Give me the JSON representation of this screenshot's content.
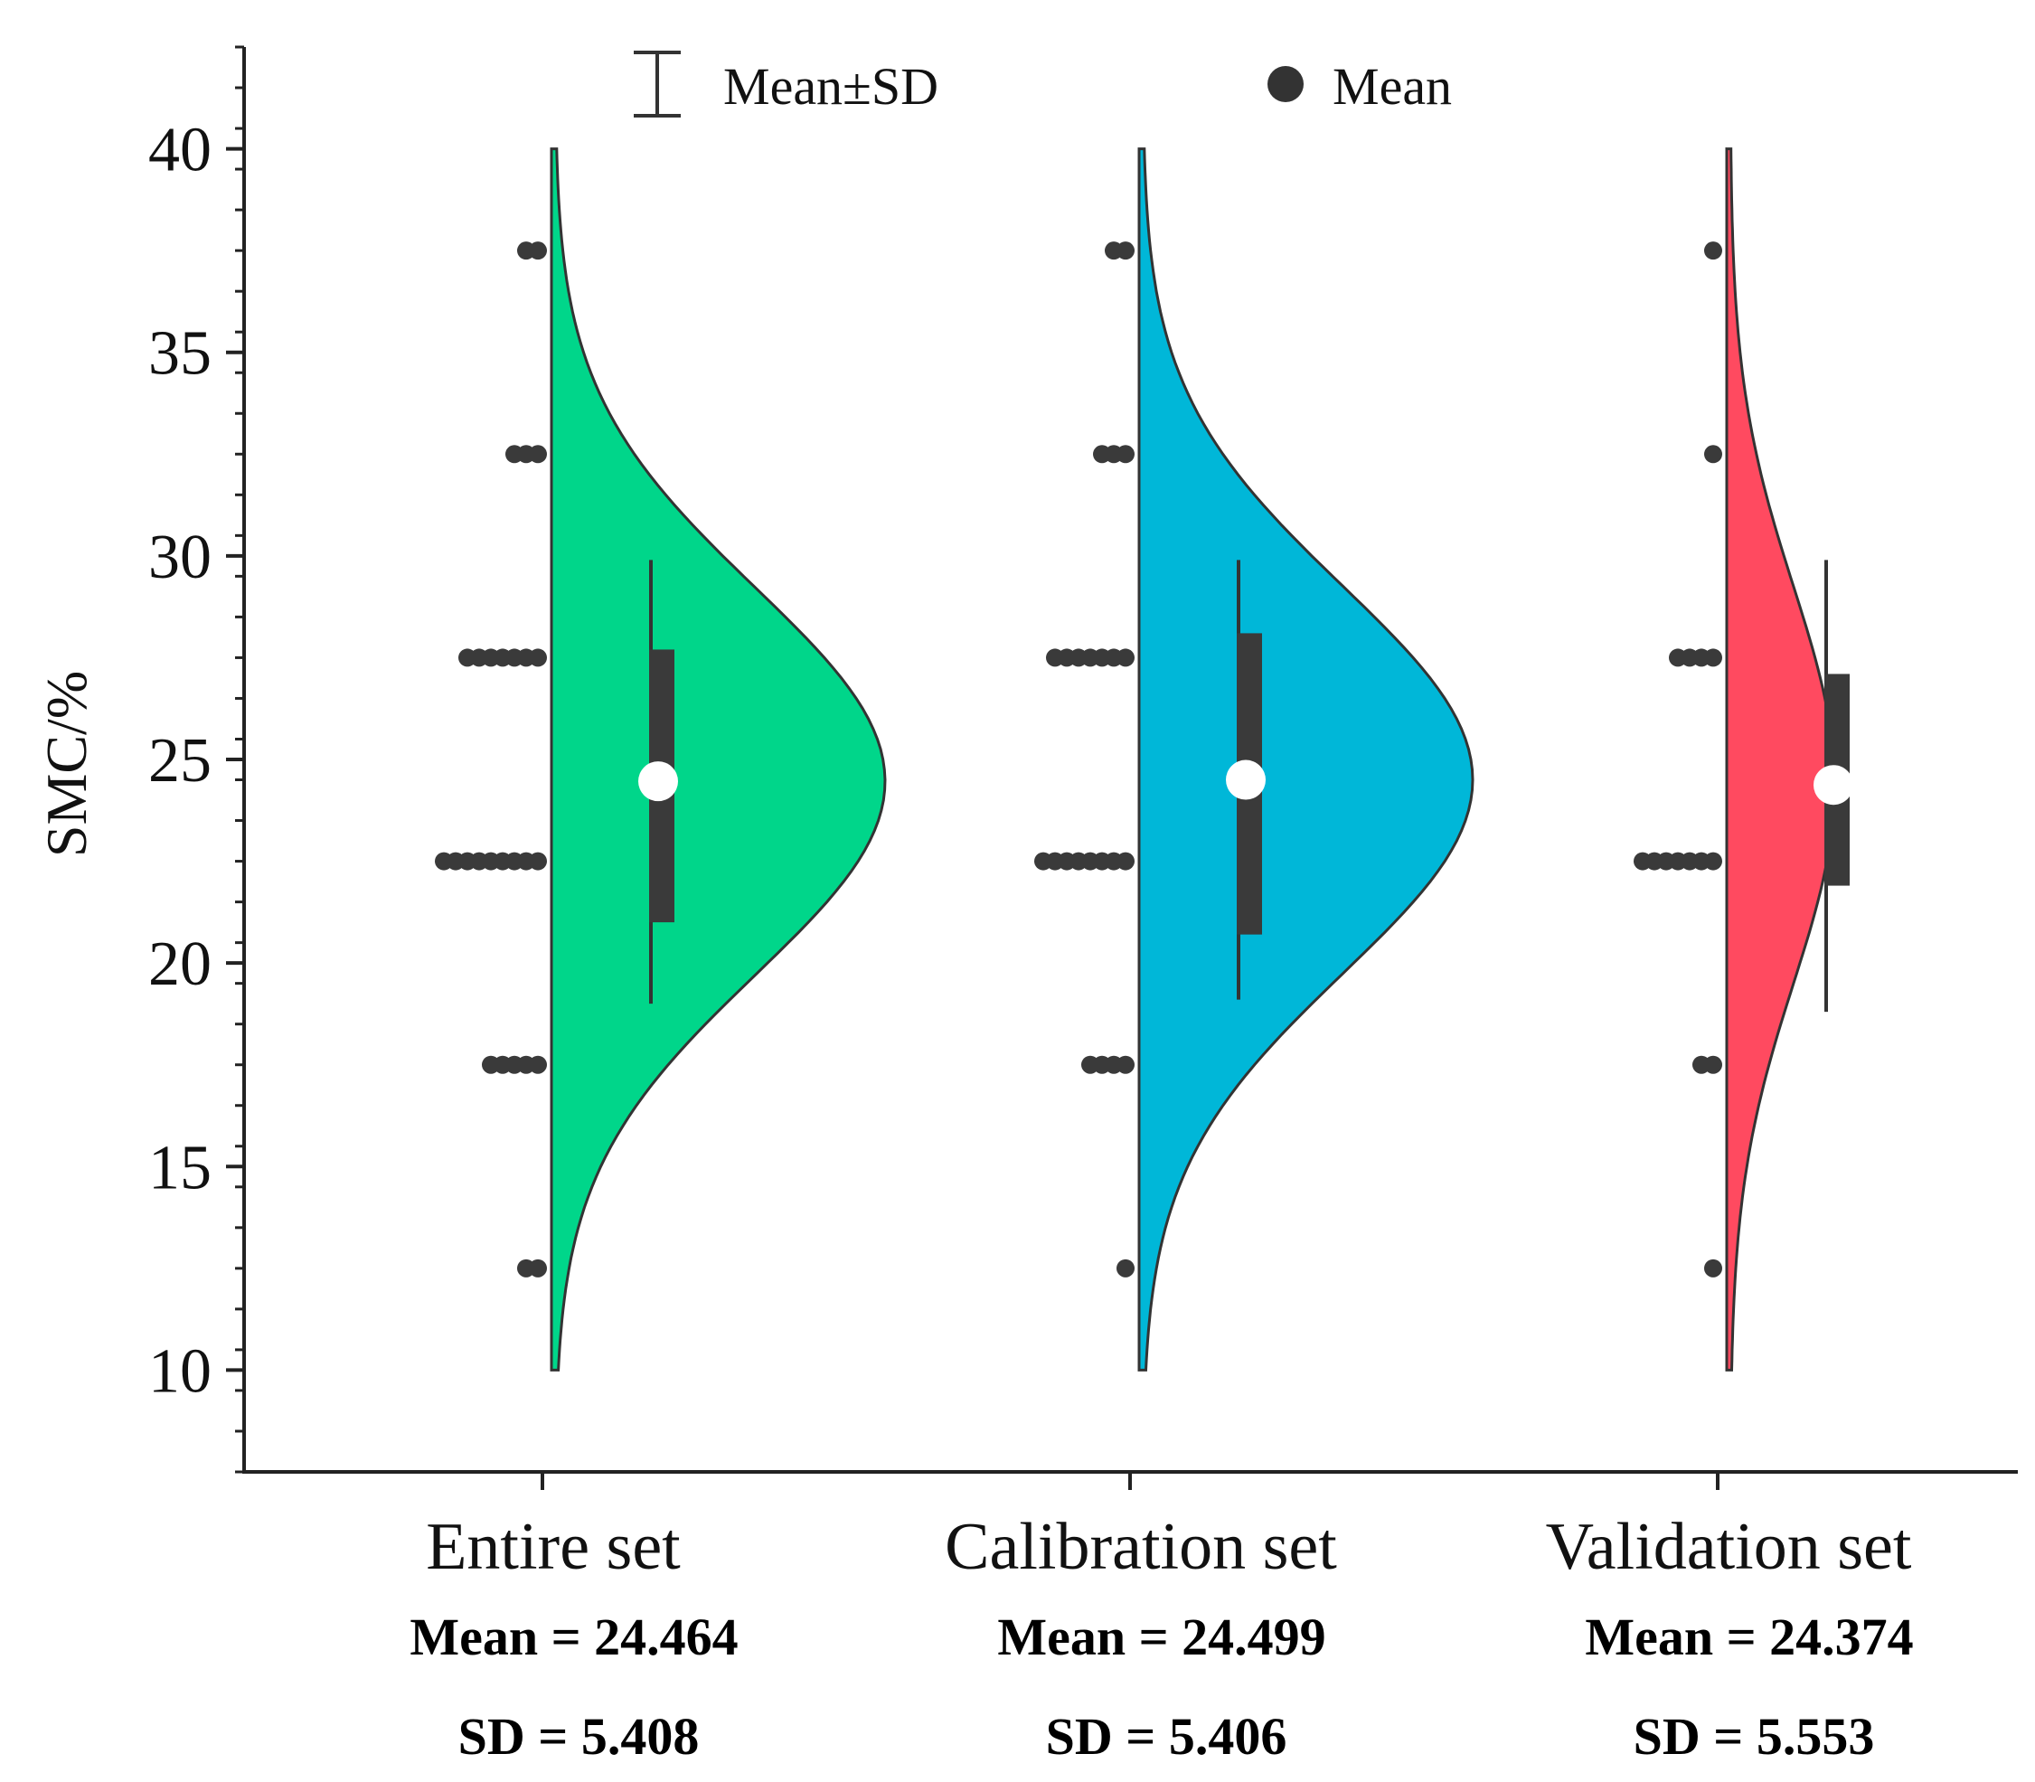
{
  "chart_data": {
    "type": "half-violin",
    "ylabel": "SMC/%",
    "ylim": [
      7.5,
      42.5
    ],
    "yticks": [
      "10",
      "15",
      "20",
      "25",
      "30",
      "35",
      "40"
    ],
    "minor_ticks": true,
    "grid": false,
    "legend": {
      "placement": "top-center",
      "items": [
        {
          "symbol": "error-bar",
          "label": "Mean±SD"
        },
        {
          "symbol": "dot",
          "label": "Mean"
        }
      ]
    },
    "series": [
      {
        "name": "Entire set",
        "mean_text": "Mean = 24.464",
        "sd_text": "SD = 5.408",
        "mean": 24.464,
        "sd": 5.408,
        "color": "#00d68a",
        "range": [
          10,
          40
        ],
        "box": [
          21.0,
          27.7
        ],
        "whisker": [
          19.0,
          29.9
        ],
        "dots": [
          {
            "y": 12.5,
            "count": 2
          },
          {
            "y": 17.5,
            "count": 5
          },
          {
            "y": 22.5,
            "count": 9
          },
          {
            "y": 27.5,
            "count": 7
          },
          {
            "y": 32.5,
            "count": 3
          },
          {
            "y": 37.5,
            "count": 2
          }
        ]
      },
      {
        "name": "Calibration set",
        "mean_text": "Mean = 24.499",
        "sd_text": "SD = 5.406",
        "mean": 24.499,
        "sd": 5.406,
        "color": "#00b7d8",
        "range": [
          10,
          40
        ],
        "box": [
          20.7,
          28.1
        ],
        "whisker": [
          19.1,
          29.9
        ],
        "dots": [
          {
            "y": 12.5,
            "count": 1
          },
          {
            "y": 17.5,
            "count": 4
          },
          {
            "y": 22.5,
            "count": 8
          },
          {
            "y": 27.5,
            "count": 7
          },
          {
            "y": 32.5,
            "count": 3
          },
          {
            "y": 37.5,
            "count": 2
          }
        ]
      },
      {
        "name": "Validation set",
        "mean_text": "Mean = 24.374",
        "sd_text": "SD = 5.553",
        "mean": 24.374,
        "sd": 5.553,
        "color": "#ff4a60",
        "range": [
          10,
          40
        ],
        "box": [
          21.9,
          27.1
        ],
        "whisker": [
          18.8,
          29.9
        ],
        "dots": [
          {
            "y": 12.5,
            "count": 1
          },
          {
            "y": 17.5,
            "count": 2
          },
          {
            "y": 22.5,
            "count": 7
          },
          {
            "y": 27.5,
            "count": 4
          },
          {
            "y": 32.5,
            "count": 1
          },
          {
            "y": 37.5,
            "count": 1
          }
        ]
      }
    ]
  }
}
